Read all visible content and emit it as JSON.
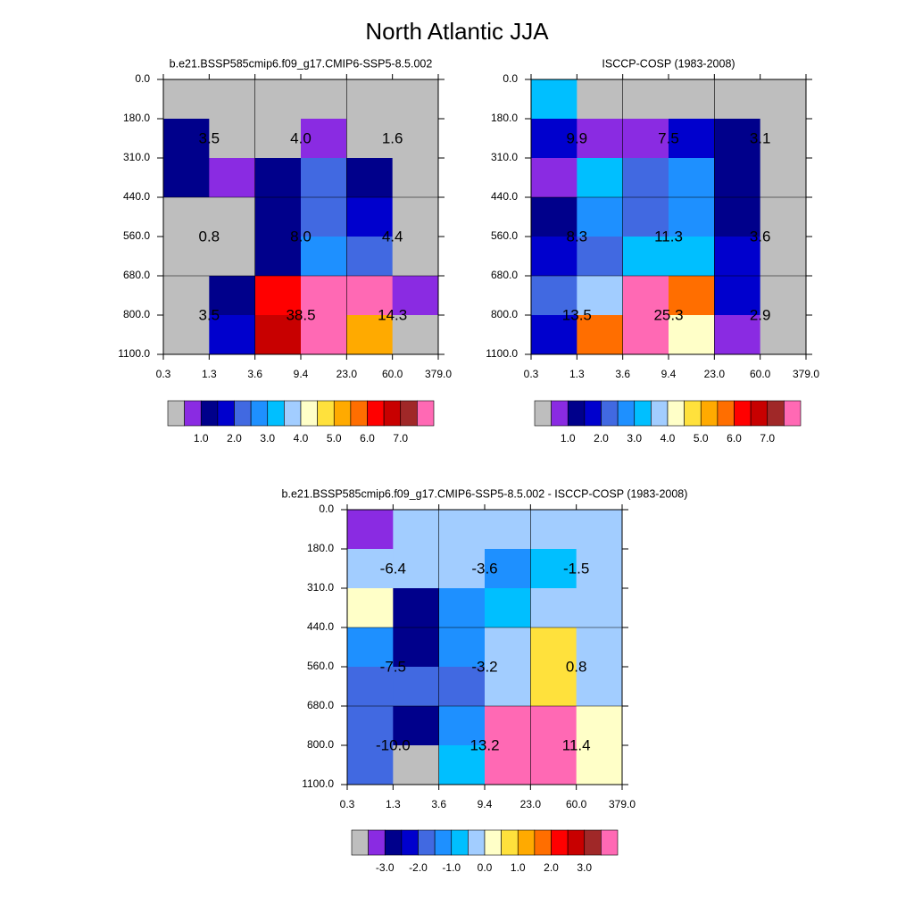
{
  "title": "North Atlantic JJA",
  "chart_data": [
    {
      "type": "heatmap",
      "title": "b.e21.BSSP585cmip6.f09_g17.CMIP6-SSP5-8.5.002",
      "x_edges": [
        "0.3",
        "1.3",
        "3.6",
        "9.4",
        "23.0",
        "60.0",
        "379.0"
      ],
      "y_edges": [
        "0.0",
        "180.0",
        "310.0",
        "440.0",
        "560.0",
        "680.0",
        "800.0",
        "1100.0"
      ],
      "values": [
        [
          0,
          0,
          0,
          0,
          0,
          0
        ],
        [
          1.25,
          0,
          0,
          0.75,
          0,
          0
        ],
        [
          1.25,
          0.75,
          1.25,
          2.25,
          1.25,
          0
        ],
        [
          0,
          0,
          1.25,
          2.25,
          1.75,
          0
        ],
        [
          0,
          0,
          1.25,
          2.75,
          2.25,
          0
        ],
        [
          0,
          1.25,
          6.25,
          12.5,
          9,
          0.75
        ],
        [
          0,
          1.75,
          6.75,
          13,
          5.25,
          0
        ]
      ],
      "block_values": [
        [
          3.5,
          4.0,
          1.6
        ],
        [
          0.8,
          8.0,
          4.4
        ],
        [
          3.5,
          38.5,
          14.3
        ]
      ],
      "block_value_labels": [
        [
          "3.5",
          "4.0",
          "1.6"
        ],
        [
          "0.8",
          "8.0",
          "4.4"
        ],
        [
          "3.5",
          "38.5",
          "14.3"
        ]
      ],
      "colorbar": {
        "colors": [
          "#bebebe",
          "#8a2be2",
          "#00008b",
          "#0000cd",
          "#4169e1",
          "#1e90ff",
          "#00bfff",
          "#a2cdff",
          "#ffffc8",
          "#ffe13c",
          "#ffaa00",
          "#ff6e00",
          "#ff0000",
          "#c80000",
          "#a02828",
          "#ff69b4"
        ],
        "levels": [
          0.5,
          1,
          1.5,
          2,
          2.5,
          3,
          3.5,
          4,
          4.5,
          5,
          5.5,
          6,
          6.5,
          7,
          7.5
        ],
        "ticks": [
          {
            "value": 1,
            "label": "1.0"
          },
          {
            "value": 2,
            "label": "2.0"
          },
          {
            "value": 3,
            "label": "3.0"
          },
          {
            "value": 4,
            "label": "4.0"
          },
          {
            "value": 5,
            "label": "5.0"
          },
          {
            "value": 6,
            "label": "6.0"
          },
          {
            "value": 7,
            "label": "7.0"
          }
        ]
      }
    },
    {
      "type": "heatmap",
      "title": "ISCCP-COSP (1983-2008)",
      "x_edges": [
        "0.3",
        "1.3",
        "3.6",
        "9.4",
        "23.0",
        "60.0",
        "379.0"
      ],
      "y_edges": [
        "0.0",
        "180.0",
        "310.0",
        "440.0",
        "560.0",
        "680.0",
        "800.0",
        "1100.0"
      ],
      "values": [
        [
          3.25,
          0,
          0,
          0,
          0,
          0
        ],
        [
          1.75,
          0.75,
          0.75,
          1.75,
          1.25,
          0
        ],
        [
          0.75,
          3.25,
          2.25,
          2.75,
          1.25,
          0
        ],
        [
          1.25,
          2.75,
          2.25,
          2.75,
          1.25,
          0
        ],
        [
          1.75,
          2.25,
          3.25,
          3.25,
          1.75,
          0
        ],
        [
          2.25,
          3.75,
          8,
          5.75,
          1.75,
          0
        ],
        [
          1.75,
          5.75,
          8,
          4.25,
          0.75,
          0
        ]
      ],
      "block_values": [
        [
          9.9,
          7.5,
          3.1
        ],
        [
          8.3,
          11.3,
          3.6
        ],
        [
          13.5,
          25.3,
          2.9
        ]
      ],
      "block_value_labels": [
        [
          "9.9",
          "7.5",
          "3.1"
        ],
        [
          "8.3",
          "11.3",
          "3.6"
        ],
        [
          "13.5",
          "25.3",
          "2.9"
        ]
      ],
      "colorbar": {
        "colors": [
          "#bebebe",
          "#8a2be2",
          "#00008b",
          "#0000cd",
          "#4169e1",
          "#1e90ff",
          "#00bfff",
          "#a2cdff",
          "#ffffc8",
          "#ffe13c",
          "#ffaa00",
          "#ff6e00",
          "#ff0000",
          "#c80000",
          "#a02828",
          "#ff69b4"
        ],
        "levels": [
          0.5,
          1,
          1.5,
          2,
          2.5,
          3,
          3.5,
          4,
          4.5,
          5,
          5.5,
          6,
          6.5,
          7,
          7.5
        ],
        "ticks": [
          {
            "value": 1,
            "label": "1.0"
          },
          {
            "value": 2,
            "label": "2.0"
          },
          {
            "value": 3,
            "label": "3.0"
          },
          {
            "value": 4,
            "label": "4.0"
          },
          {
            "value": 5,
            "label": "5.0"
          },
          {
            "value": 6,
            "label": "6.0"
          },
          {
            "value": 7,
            "label": "7.0"
          }
        ]
      }
    },
    {
      "type": "heatmap",
      "title": "b.e21.BSSP585cmip6.f09_g17.CMIP6-SSP5-8.5.002 - ISCCP-COSP (1983-2008)",
      "x_edges": [
        "0.3",
        "1.3",
        "3.6",
        "9.4",
        "23.0",
        "60.0",
        "379.0"
      ],
      "y_edges": [
        "0.0",
        "180.0",
        "310.0",
        "440.0",
        "560.0",
        "680.0",
        "800.0",
        "1100.0"
      ],
      "values": [
        [
          -3.25,
          -0.25,
          -0.25,
          -0.25,
          -0.25,
          -0.25
        ],
        [
          -0.25,
          -0.25,
          -0.25,
          -1.25,
          -0.75,
          -0.25
        ],
        [
          0.25,
          -2.75,
          -1.25,
          -0.75,
          -0.25,
          -0.25
        ],
        [
          -1.25,
          -2.75,
          -1.25,
          -0.25,
          0.75,
          -0.25
        ],
        [
          -1.75,
          -1.75,
          -1.75,
          -0.25,
          0.75,
          -0.25
        ],
        [
          -1.75,
          -2.75,
          -1.25,
          4.5,
          4.5,
          0.25
        ],
        [
          -1.75,
          -4,
          -0.75,
          4.5,
          4.5,
          0.25
        ]
      ],
      "block_values": [
        [
          -6.4,
          -3.6,
          -1.5
        ],
        [
          -7.5,
          -3.2,
          0.8
        ],
        [
          -10.0,
          13.2,
          11.4
        ]
      ],
      "block_value_labels": [
        [
          "-6.4",
          "-3.6",
          "-1.5"
        ],
        [
          "-7.5",
          "-3.2",
          "0.8"
        ],
        [
          "-10.0",
          "13.2",
          "11.4"
        ]
      ],
      "colorbar": {
        "colors": [
          "#bebebe",
          "#8a2be2",
          "#00008b",
          "#0000cd",
          "#4169e1",
          "#1e90ff",
          "#00bfff",
          "#a2cdff",
          "#ffffc8",
          "#ffe13c",
          "#ffaa00",
          "#ff6e00",
          "#ff0000",
          "#c80000",
          "#a02828",
          "#ff69b4"
        ],
        "levels": [
          -3.5,
          -3,
          -2.5,
          -2,
          -1.5,
          -1,
          -0.5,
          0,
          0.5,
          1,
          1.5,
          2,
          2.5,
          3,
          3.5
        ],
        "ticks": [
          {
            "value": -3,
            "label": "-3.0"
          },
          {
            "value": -2,
            "label": "-2.0"
          },
          {
            "value": -1,
            "label": "-1.0"
          },
          {
            "value": 0,
            "label": "0.0"
          },
          {
            "value": 1,
            "label": "1.0"
          },
          {
            "value": 2,
            "label": "2.0"
          },
          {
            "value": 3,
            "label": "3.0"
          }
        ]
      }
    }
  ]
}
